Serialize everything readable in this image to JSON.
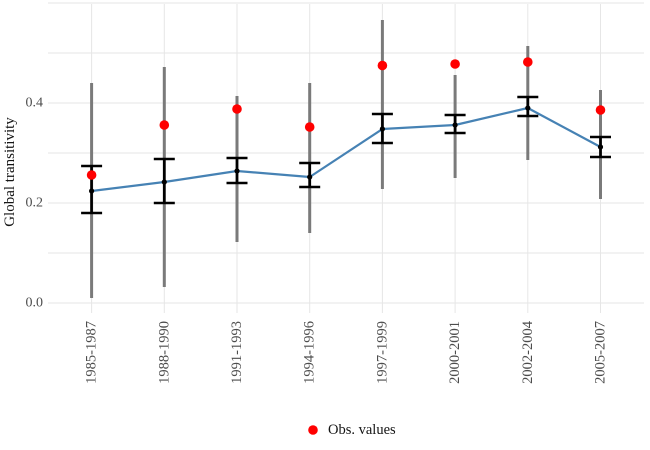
{
  "chart_data": {
    "type": "line",
    "title": "",
    "xlabel": "",
    "ylabel": "Global transitivity",
    "categories": [
      "1985-1987",
      "1988-1990",
      "1991-1993",
      "1994-1996",
      "1997-1999",
      "2000-2001",
      "2002-2004",
      "2005-2007"
    ],
    "y_axis": {
      "tick_labels": [
        "0.0",
        "0.2",
        "0.4"
      ],
      "tick_values": [
        0.0,
        0.2,
        0.4
      ],
      "gridline_values": [
        0.0,
        0.1,
        0.2,
        0.3,
        0.4,
        0.5,
        0.6
      ],
      "range": [
        -0.02,
        0.6
      ]
    },
    "grid": true,
    "legend_position": "bottom-center",
    "series": [
      {
        "id": "estimate-line",
        "type": "line+point",
        "values": [
          0.224,
          0.242,
          0.264,
          0.252,
          0.348,
          0.356,
          0.39,
          0.312
        ]
      },
      {
        "id": "observed",
        "name": "Obs. values",
        "type": "scatter",
        "values": [
          0.256,
          0.356,
          0.388,
          0.352,
          0.475,
          0.478,
          0.482,
          0.386
        ]
      }
    ],
    "error_bars": {
      "narrow_black": {
        "caps": true,
        "lo": [
          0.18,
          0.2,
          0.24,
          0.232,
          0.32,
          0.34,
          0.374,
          0.292
        ],
        "hi": [
          0.274,
          0.288,
          0.29,
          0.28,
          0.378,
          0.376,
          0.412,
          0.332
        ]
      },
      "wide_gray": {
        "caps": false,
        "lo": [
          0.01,
          0.032,
          0.122,
          0.14,
          0.228,
          0.25,
          0.286,
          0.208
        ],
        "hi": [
          0.44,
          0.472,
          0.414,
          0.44,
          0.566,
          0.456,
          0.514,
          0.426
        ]
      }
    },
    "legend": [
      {
        "label": "Obs. values",
        "marker": "circle",
        "color": "#FF0000"
      }
    ]
  },
  "colors": {
    "background": "#FFFFFF",
    "line": "#4682B4",
    "obs_point": "#FF0000",
    "point_black": "#000000",
    "error_black": "#000000",
    "error_gray": "#7A7A7A",
    "gridline": "#E6E6E6",
    "axis_text": "#4D4D4D",
    "title_text": "#141414"
  }
}
